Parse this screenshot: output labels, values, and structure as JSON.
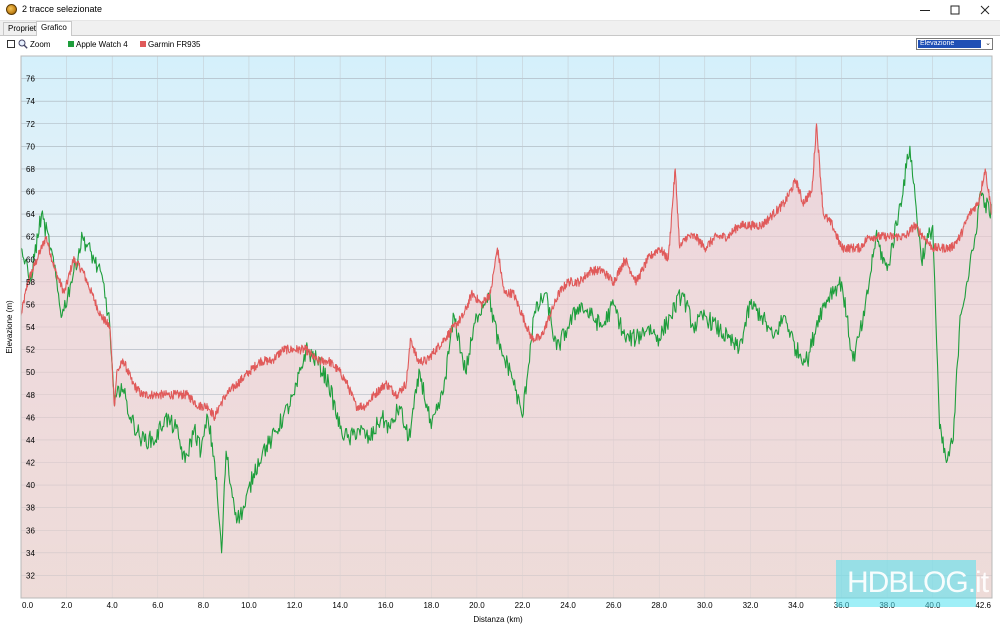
{
  "window": {
    "title": "2 tracce selezionate"
  },
  "tabs": [
    {
      "label": "Proprietà"
    },
    {
      "label": "Grafico"
    }
  ],
  "toolbar": {
    "zoom_label": "Zoom",
    "select_value": "Elevazione"
  },
  "watermark": {
    "text": "HDBLOG.it"
  },
  "chart_data": {
    "type": "line",
    "xlabel": "Distanza  (km)",
    "ylabel": "Elevazione (m)",
    "xlim": [
      0,
      42.6
    ],
    "ylim": [
      30,
      78
    ],
    "grid": true,
    "legend": "top-left",
    "x_ticks": [
      "0.0",
      "2.0",
      "4.0",
      "6.0",
      "8.0",
      "10.0",
      "12.0",
      "14.0",
      "16.0",
      "18.0",
      "20.0",
      "22.0",
      "24.0",
      "26.0",
      "28.0",
      "30.0",
      "32.0",
      "34.0",
      "36.0",
      "38.0",
      "40.0",
      "42.6"
    ],
    "y_ticks": [
      32,
      34,
      36,
      38,
      40,
      42,
      44,
      46,
      48,
      50,
      52,
      54,
      56,
      58,
      60,
      62,
      64,
      66,
      68,
      70,
      72,
      74,
      76
    ],
    "series": [
      {
        "name": "Apple Watch 4",
        "color": "#1e9e3c",
        "x": [
          0,
          0.4,
          0.9,
          1.3,
          1.8,
          2.2,
          2.7,
          3.2,
          3.6,
          3.9,
          4.1,
          4.4,
          4.8,
          5.3,
          5.9,
          6.3,
          6.8,
          7.2,
          7.6,
          7.9,
          8.2,
          8.5,
          8.8,
          9.0,
          9.2,
          9.5,
          9.8,
          10.2,
          10.6,
          11.0,
          11.5,
          12.0,
          12.5,
          13.0,
          13.5,
          14.0,
          14.4,
          14.8,
          15.3,
          15.8,
          16.2,
          16.6,
          17.0,
          17.5,
          18.0,
          18.5,
          19.0,
          19.5,
          20.0,
          20.5,
          21.0,
          21.5,
          22.0,
          22.5,
          23.0,
          23.5,
          24.0,
          24.5,
          25.0,
          25.5,
          26.0,
          26.5,
          27.0,
          27.5,
          28.0,
          28.5,
          29.0,
          29.5,
          30.0,
          30.5,
          31.0,
          31.5,
          32.0,
          32.5,
          33.0,
          33.5,
          34.0,
          34.5,
          35.0,
          35.5,
          36.0,
          36.5,
          37.0,
          37.5,
          38.0,
          38.5,
          39.0,
          39.5,
          40.0,
          40.3,
          40.6,
          40.9,
          41.2,
          41.5,
          41.8,
          42.1,
          42.3,
          42.6
        ],
        "values": [
          61,
          58,
          64,
          61,
          55,
          58,
          62,
          60,
          58,
          54,
          47,
          49,
          46,
          44,
          44,
          46,
          45,
          42,
          45,
          43,
          46,
          42,
          34,
          43,
          40,
          37,
          38,
          41,
          43,
          44,
          46,
          48,
          52,
          51,
          49,
          45,
          44,
          45,
          44,
          46,
          45,
          47,
          44,
          50,
          45,
          48,
          55,
          50,
          55,
          57,
          52,
          50,
          46,
          55,
          57,
          52,
          54,
          56,
          55,
          54,
          56,
          53,
          53,
          54,
          53,
          55,
          57,
          54,
          55,
          54,
          53,
          52,
          56,
          55,
          53,
          55,
          52,
          51,
          55,
          57,
          58,
          51,
          55,
          62,
          59,
          64,
          70,
          60,
          63,
          45,
          42,
          44,
          55,
          58,
          61,
          66,
          65,
          64
        ],
        "jitter": 1.6
      },
      {
        "name": "Garmin FR935",
        "color": "#e05a5a",
        "x": [
          0,
          0.3,
          0.7,
          1.1,
          1.5,
          1.9,
          2.3,
          2.7,
          3.1,
          3.5,
          3.9,
          4.1,
          4.2,
          4.5,
          4.9,
          5.3,
          5.8,
          6.3,
          6.8,
          7.3,
          7.8,
          8.2,
          8.5,
          8.7,
          9.0,
          9.5,
          10.0,
          10.5,
          11.0,
          11.5,
          12.0,
          12.5,
          13.0,
          13.5,
          14.0,
          14.3,
          14.7,
          15.1,
          15.5,
          16.0,
          16.5,
          16.9,
          17.1,
          17.4,
          17.8,
          18.2,
          18.6,
          19.0,
          19.4,
          19.8,
          20.2,
          20.6,
          20.9,
          21.2,
          21.6,
          22.0,
          22.4,
          22.8,
          23.2,
          23.6,
          24.0,
          24.5,
          25.0,
          25.5,
          26.0,
          26.5,
          27.0,
          27.5,
          28.0,
          28.4,
          28.7,
          28.9,
          29.2,
          29.6,
          30.0,
          30.5,
          31.0,
          31.5,
          32.0,
          32.5,
          33.0,
          33.5,
          34.0,
          34.3,
          34.7,
          34.9,
          35.2,
          35.6,
          36.0,
          36.4,
          36.8,
          37.2,
          37.6,
          38.0,
          38.4,
          38.8,
          39.2,
          39.6,
          40.0,
          40.4,
          40.8,
          41.2,
          41.6,
          42.0,
          42.3,
          42.6
        ],
        "values": [
          55,
          58,
          60,
          62,
          59,
          57,
          60,
          59,
          57,
          55,
          54,
          47,
          50,
          51,
          49,
          48,
          48,
          48,
          48,
          48,
          47,
          47,
          46,
          47,
          48,
          49,
          50,
          51,
          51,
          52,
          52,
          52,
          51,
          51,
          50,
          49,
          47,
          47,
          48,
          49,
          48,
          49,
          53,
          51,
          51,
          52,
          53,
          54,
          55,
          57,
          56,
          57,
          61,
          57,
          57,
          55,
          53,
          53,
          55,
          57,
          58,
          58,
          59,
          59,
          58,
          60,
          58,
          60,
          61,
          60,
          68,
          61,
          62,
          62,
          61,
          62,
          62,
          63,
          63,
          63,
          64,
          65,
          67,
          65,
          66,
          72,
          64,
          63,
          61,
          61,
          61,
          62,
          62,
          62,
          62,
          62,
          63,
          62,
          61,
          61,
          61,
          62,
          64,
          65,
          68,
          64
        ],
        "jitter": 0.8
      }
    ]
  }
}
